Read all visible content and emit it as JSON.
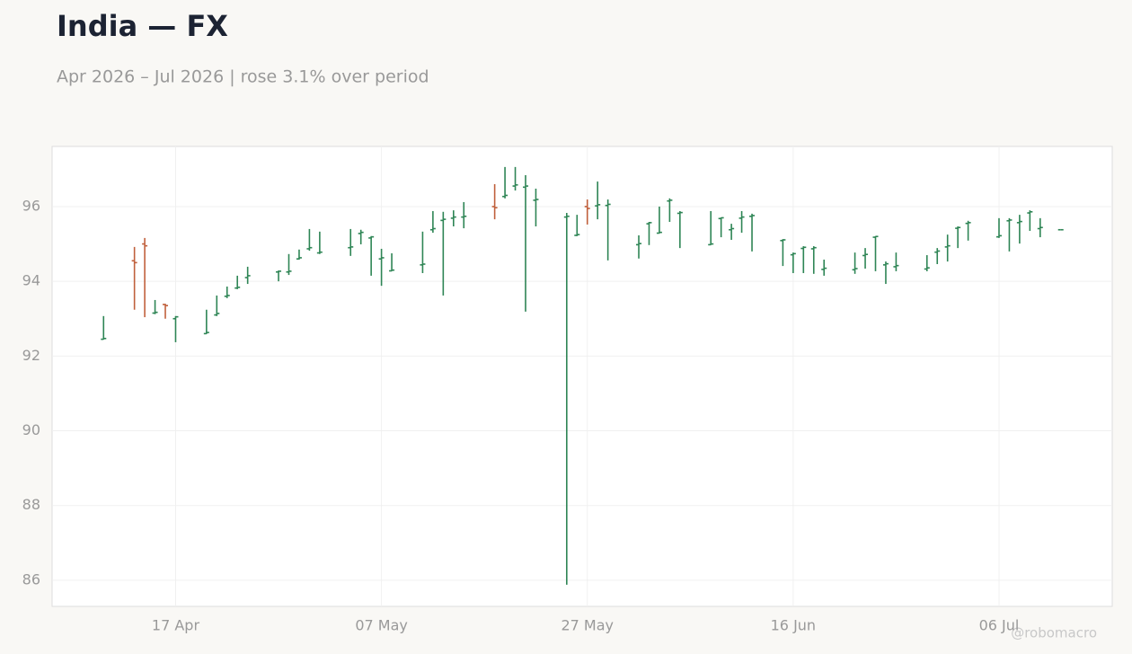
{
  "chart_data": {
    "type": "ohlc",
    "title": "India — FX",
    "subtitle": "Apr 2026 – Jul 2026 | rose 3.1% over period",
    "credit": "@robomacro",
    "up_color": "#2e8555",
    "down_color": "#c0603c",
    "grid": true,
    "x": [
      "2026-04-10",
      "2026-04-13",
      "2026-04-14",
      "2026-04-15",
      "2026-04-16",
      "2026-04-17",
      "2026-04-20",
      "2026-04-21",
      "2026-04-22",
      "2026-04-23",
      "2026-04-24",
      "2026-04-27",
      "2026-04-28",
      "2026-04-29",
      "2026-04-30",
      "2026-05-01",
      "2026-05-04",
      "2026-05-05",
      "2026-05-06",
      "2026-05-07",
      "2026-05-08",
      "2026-05-11",
      "2026-05-12",
      "2026-05-13",
      "2026-05-14",
      "2026-05-15",
      "2026-05-18",
      "2026-05-19",
      "2026-05-20",
      "2026-05-21",
      "2026-05-22",
      "2026-05-25",
      "2026-05-26",
      "2026-05-27",
      "2026-05-28",
      "2026-05-29",
      "2026-06-01",
      "2026-06-02",
      "2026-06-03",
      "2026-06-04",
      "2026-06-05",
      "2026-06-08",
      "2026-06-09",
      "2026-06-10",
      "2026-06-11",
      "2026-06-12",
      "2026-06-15",
      "2026-06-16",
      "2026-06-17",
      "2026-06-18",
      "2026-06-19",
      "2026-06-22",
      "2026-06-23",
      "2026-06-24",
      "2026-06-25",
      "2026-06-26",
      "2026-06-29",
      "2026-06-30",
      "2026-07-01",
      "2026-07-02",
      "2026-07-03",
      "2026-07-06",
      "2026-07-07",
      "2026-07-08",
      "2026-07-09",
      "2026-07-10",
      "2026-07-12"
    ],
    "open": [
      92.45,
      94.55,
      95.0,
      93.15,
      93.38,
      93.0,
      92.6,
      93.1,
      93.6,
      93.82,
      94.1,
      94.25,
      94.25,
      94.6,
      94.87,
      94.76,
      94.9,
      95.28,
      95.16,
      94.6,
      94.28,
      94.44,
      95.38,
      95.63,
      95.69,
      95.72,
      96.0,
      96.27,
      96.55,
      96.52,
      96.17,
      95.72,
      95.23,
      96.0,
      96.02,
      96.03,
      94.98,
      95.54,
      95.29,
      96.15,
      95.82,
      94.98,
      95.68,
      95.38,
      95.69,
      95.74,
      95.09,
      94.71,
      94.88,
      94.87,
      94.32,
      94.31,
      94.69,
      95.18,
      94.44,
      94.39,
      94.33,
      94.78,
      94.92,
      95.42,
      95.55,
      95.19,
      95.62,
      95.57,
      95.83,
      95.41,
      95.38
    ],
    "high": [
      93.07,
      94.92,
      95.16,
      93.5,
      93.4,
      93.07,
      93.24,
      93.62,
      93.86,
      94.15,
      94.39,
      94.29,
      94.73,
      94.85,
      95.4,
      95.33,
      95.4,
      95.38,
      95.21,
      94.87,
      94.75,
      95.33,
      95.88,
      95.86,
      95.9,
      96.12,
      96.6,
      97.06,
      97.06,
      96.84,
      96.48,
      95.83,
      95.78,
      96.19,
      96.67,
      96.19,
      95.23,
      95.59,
      96.0,
      96.22,
      95.88,
      95.88,
      95.71,
      95.54,
      95.88,
      95.81,
      95.13,
      94.77,
      94.94,
      94.94,
      94.58,
      94.77,
      94.89,
      95.21,
      94.53,
      94.77,
      94.7,
      94.89,
      95.25,
      95.47,
      95.62,
      95.69,
      95.69,
      95.78,
      95.9,
      95.69,
      95.38
    ],
    "low": [
      92.44,
      93.24,
      93.04,
      93.12,
      93.0,
      92.37,
      92.59,
      93.07,
      93.55,
      93.79,
      93.93,
      94.0,
      94.17,
      94.58,
      94.82,
      94.73,
      94.68,
      94.99,
      94.15,
      93.88,
      94.27,
      94.22,
      95.3,
      93.62,
      95.47,
      95.42,
      95.66,
      96.22,
      96.43,
      93.19,
      95.47,
      85.88,
      95.21,
      95.52,
      95.66,
      94.56,
      94.61,
      94.97,
      95.28,
      95.59,
      94.89,
      94.97,
      95.18,
      95.11,
      95.3,
      94.8,
      94.41,
      94.22,
      94.22,
      94.2,
      94.15,
      94.2,
      94.34,
      94.27,
      93.93,
      94.27,
      94.27,
      94.46,
      94.53,
      94.89,
      95.09,
      95.16,
      94.8,
      95.01,
      95.35,
      95.18,
      95.38
    ],
    "close": [
      92.47,
      94.5,
      94.95,
      93.17,
      93.35,
      93.05,
      92.63,
      93.14,
      93.62,
      93.84,
      94.15,
      94.27,
      94.27,
      94.63,
      94.9,
      94.78,
      94.92,
      95.31,
      95.19,
      94.63,
      94.3,
      94.46,
      95.41,
      95.66,
      95.72,
      95.74,
      95.97,
      96.3,
      96.58,
      96.55,
      96.19,
      95.74,
      95.25,
      95.95,
      96.05,
      96.06,
      95.01,
      95.57,
      95.31,
      96.17,
      95.84,
      95.0,
      95.7,
      95.41,
      95.72,
      95.76,
      95.11,
      94.74,
      94.91,
      94.9,
      94.35,
      94.34,
      94.72,
      95.2,
      94.47,
      94.42,
      94.36,
      94.81,
      94.95,
      95.44,
      95.57,
      95.22,
      95.64,
      95.6,
      95.86,
      95.44,
      95.38
    ],
    "xlim": [
      "2026-04-05",
      "2026-07-17"
    ],
    "xticks": [
      {
        "value": "2026-04-17",
        "label": "17 Apr"
      },
      {
        "value": "2026-05-07",
        "label": "07 May"
      },
      {
        "value": "2026-05-27",
        "label": "27 May"
      },
      {
        "value": "2026-06-16",
        "label": "16 Jun"
      },
      {
        "value": "2026-07-06",
        "label": "06 Jul"
      }
    ],
    "ylim": [
      85.3,
      97.61
    ],
    "yticks": [
      86,
      88,
      90,
      92,
      94,
      96
    ]
  }
}
